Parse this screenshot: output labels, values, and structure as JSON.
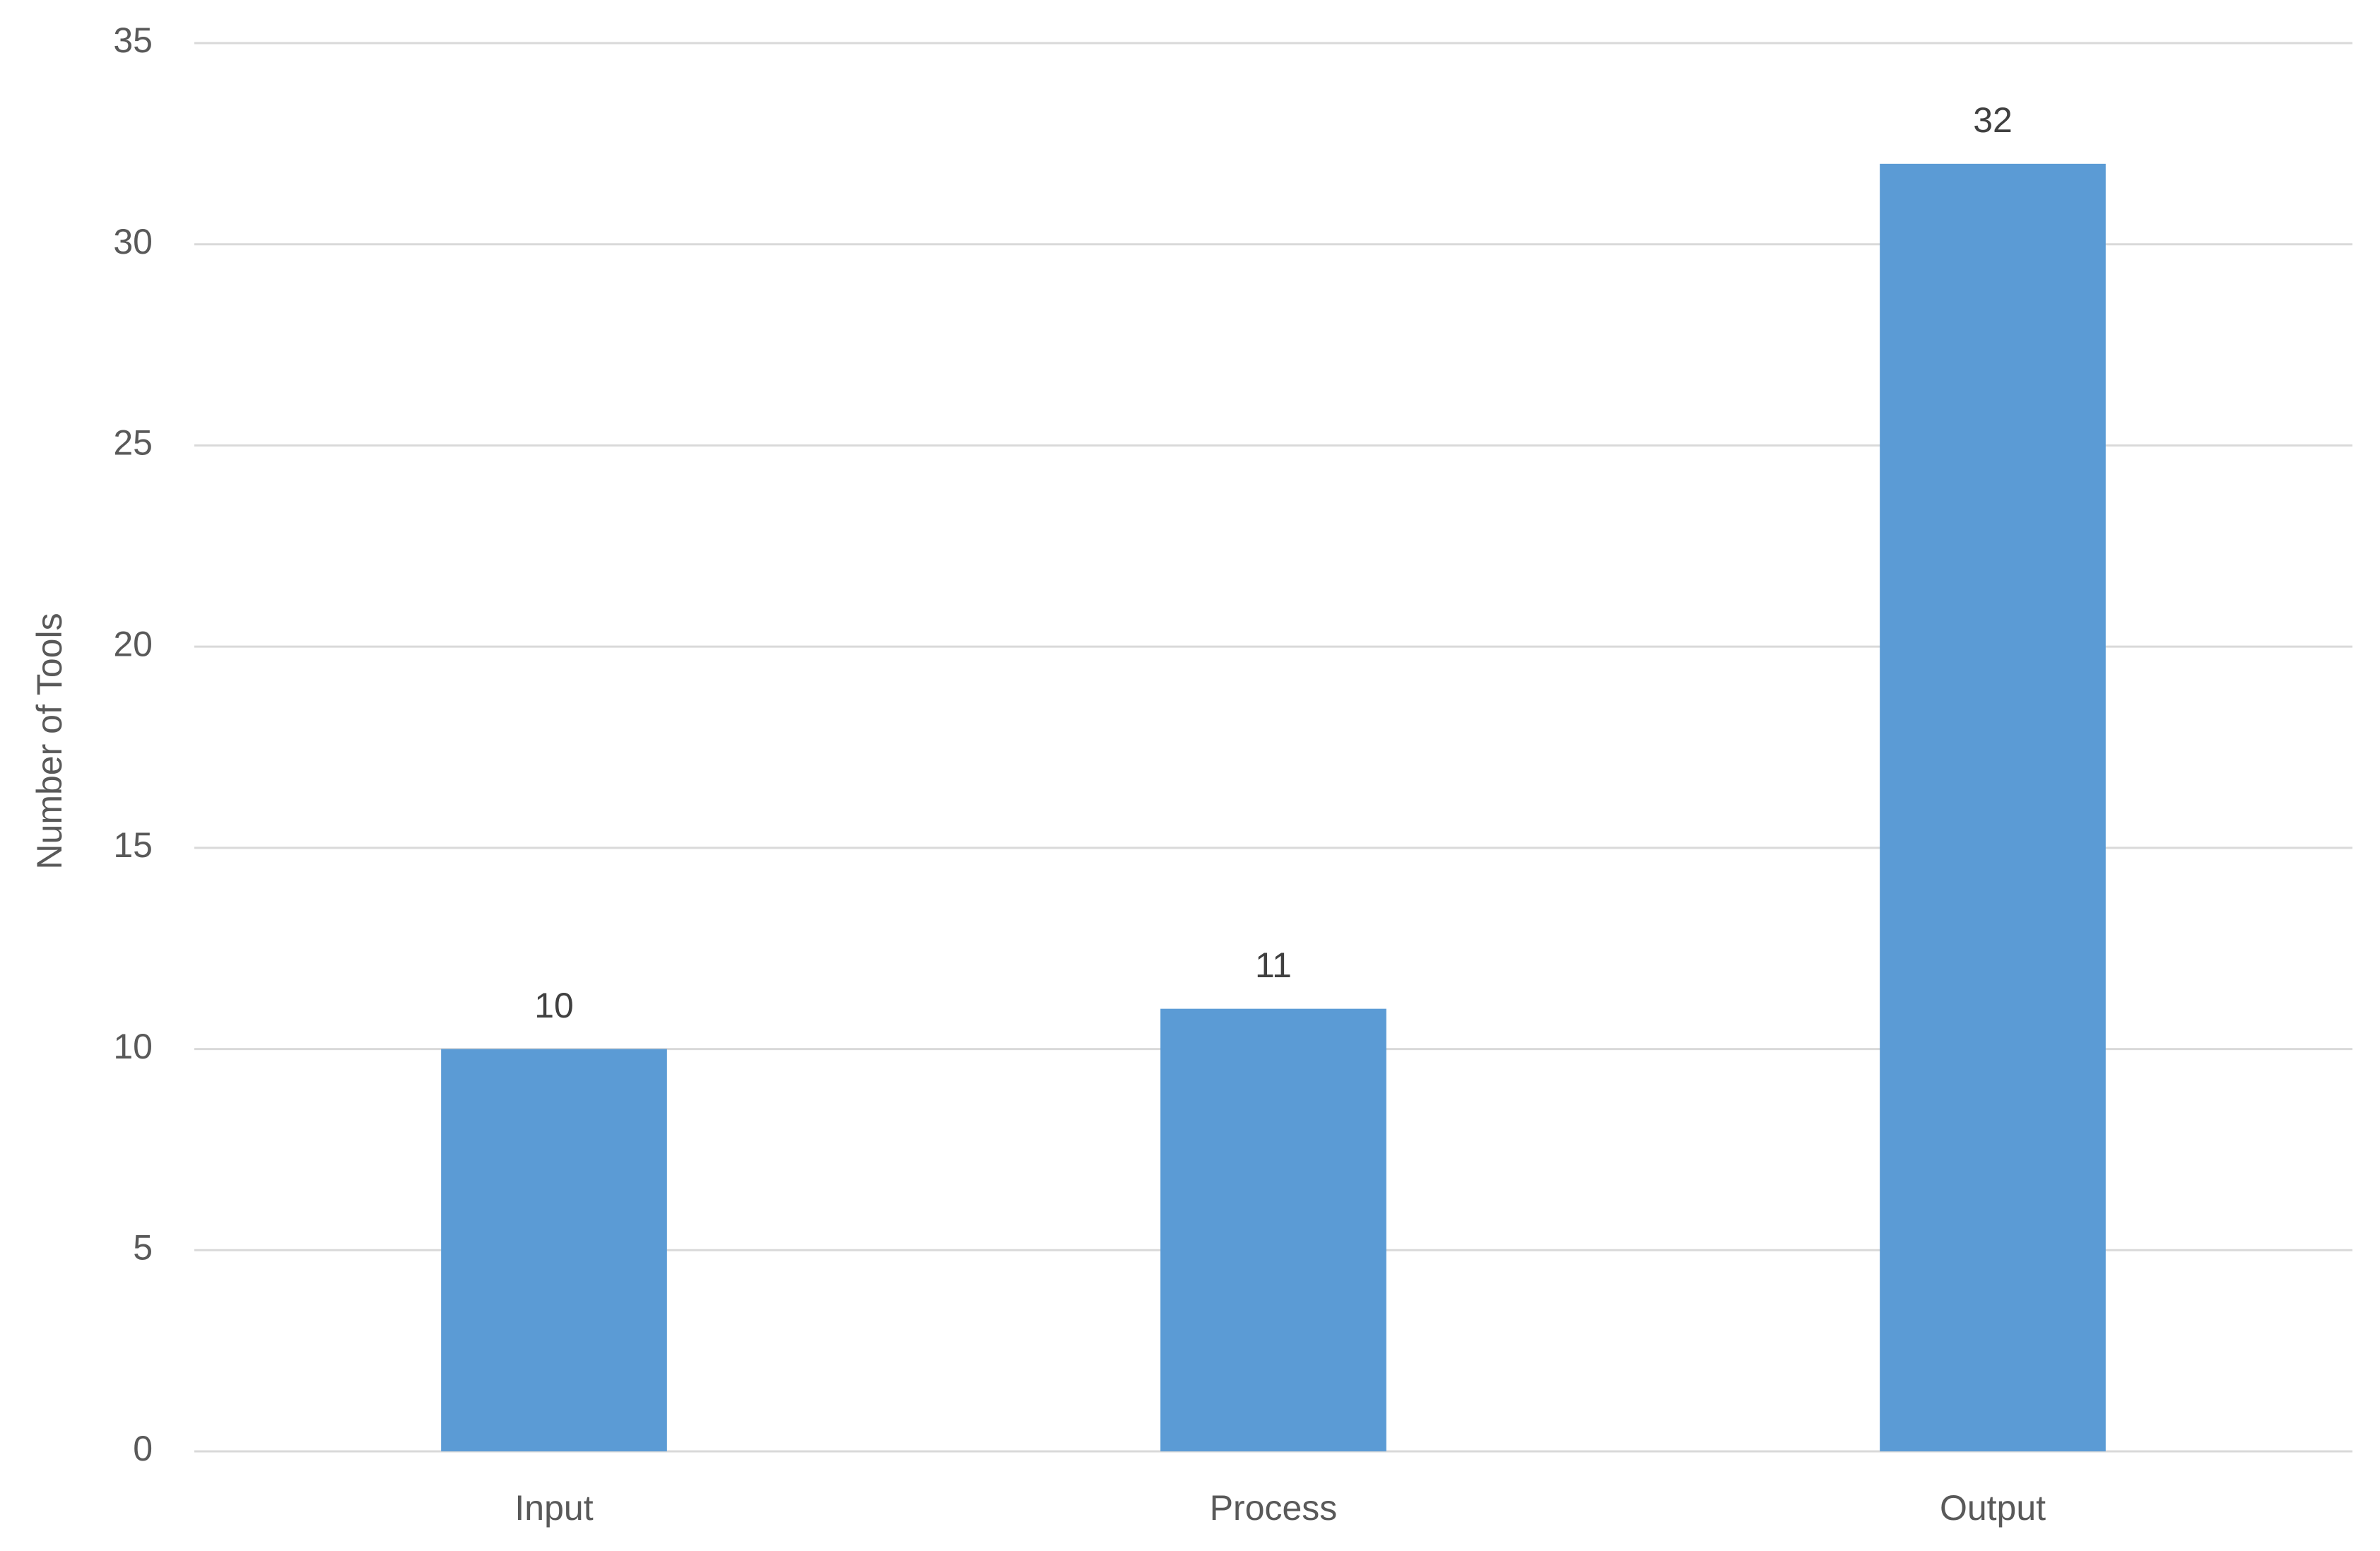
{
  "chart_data": {
    "type": "bar",
    "y_label": "Number of Tools",
    "categories": [
      "Input",
      "Process",
      "Output"
    ],
    "values": [
      10,
      11,
      32
    ],
    "color": "#5b9bd5",
    "ylim": [
      0,
      35
    ],
    "yticks": [
      0,
      5,
      10,
      15,
      20,
      25,
      30,
      35
    ],
    "grid": true
  }
}
